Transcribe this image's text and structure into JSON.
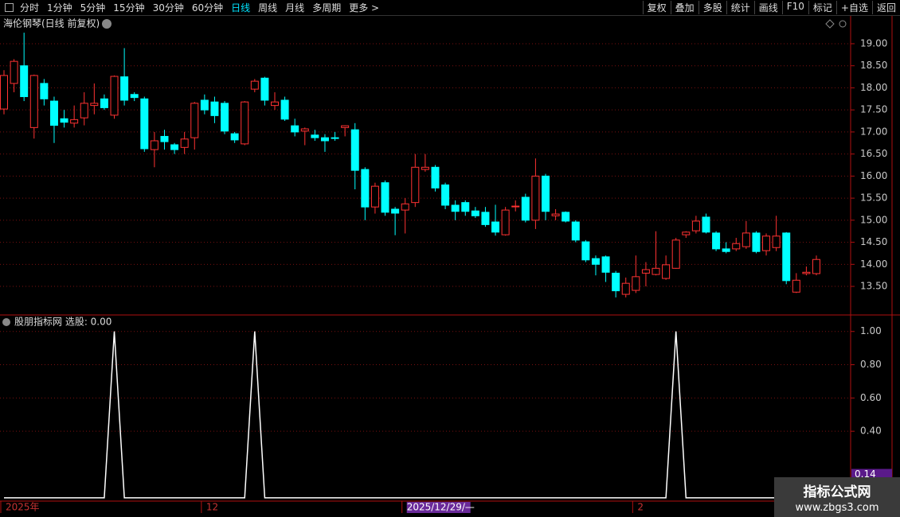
{
  "toolbar": {
    "periods": [
      "分时",
      "1分钟",
      "5分钟",
      "15分钟",
      "30分钟",
      "60分钟",
      "日线",
      "周线",
      "月线",
      "多周期",
      "更多 >"
    ],
    "active": 6,
    "buttons": [
      "复权",
      "叠加",
      "多股",
      "统计",
      "画线",
      "F10",
      "标记",
      "+自选",
      "返回"
    ]
  },
  "watermark": {
    "name": "指标公式网",
    "url": "www.zbgs3.com"
  },
  "chart_data": [
    {
      "type": "candlestick",
      "title": "海伦钢琴(日线 前复权)",
      "up_color": "#ff3232",
      "down_color": "#00ffff",
      "flat_color": "#ffffff",
      "grid": true,
      "categories": [
        "2025年",
        null,
        null,
        null,
        null,
        null,
        null,
        null,
        null,
        null,
        null,
        null,
        null,
        null,
        null,
        null,
        null,
        null,
        null,
        null,
        "12",
        null,
        null,
        null,
        null,
        null,
        null,
        null,
        null,
        null,
        null,
        null,
        null,
        null,
        null,
        null,
        null,
        null,
        null,
        null,
        "2025/12/29/—",
        null,
        null,
        null,
        null,
        null,
        null,
        null,
        null,
        null,
        null,
        null,
        null,
        null,
        null,
        null,
        null,
        null,
        null,
        null,
        null,
        null,
        null,
        "2",
        null,
        null,
        null,
        null,
        null,
        null,
        null,
        null,
        null,
        null,
        null,
        null,
        null,
        null,
        null,
        null,
        null,
        null
      ],
      "cursor_index": 40,
      "open": [
        17.52,
        18.1,
        18.5,
        17.1,
        18.1,
        17.7,
        17.3,
        17.2,
        17.32,
        17.6,
        17.75,
        17.38,
        18.25,
        17.85,
        17.75,
        16.6,
        16.9,
        16.71,
        16.65,
        16.87,
        17.72,
        17.68,
        17.65,
        16.96,
        16.73,
        17.97,
        18.22,
        17.6,
        17.72,
        17.14,
        17.02,
        16.93,
        16.87,
        16.87,
        17.1,
        17.05,
        16.15,
        15.3,
        15.85,
        15.25,
        15.23,
        15.4,
        16.15,
        16.2,
        15.8,
        15.34,
        15.4,
        15.21,
        15.18,
        14.96,
        14.67,
        15.31,
        15.52,
        15.0,
        16.0,
        15.1,
        15.18,
        14.96,
        14.51,
        14.13,
        14.17,
        13.8,
        13.32,
        13.41,
        13.8,
        13.77,
        13.68,
        13.91,
        14.67,
        14.76,
        15.07,
        14.71,
        14.35,
        14.35,
        14.4,
        14.71,
        14.31,
        14.38,
        14.71,
        13.37,
        13.79,
        13.79
      ],
      "high": [
        18.4,
        18.65,
        19.25,
        18.3,
        18.2,
        17.8,
        17.5,
        17.6,
        17.9,
        18.1,
        17.85,
        18.28,
        18.9,
        17.9,
        17.8,
        17.0,
        17.05,
        16.75,
        17.0,
        17.68,
        17.85,
        17.8,
        17.7,
        17.0,
        17.7,
        18.2,
        18.25,
        17.9,
        17.8,
        17.3,
        17.1,
        17.05,
        16.95,
        17.0,
        17.15,
        17.2,
        16.2,
        15.85,
        15.9,
        15.3,
        15.5,
        16.5,
        16.5,
        16.25,
        15.85,
        15.45,
        15.45,
        15.3,
        15.3,
        15.35,
        15.3,
        15.45,
        15.6,
        16.4,
        16.05,
        15.25,
        15.2,
        15.0,
        14.55,
        14.2,
        14.2,
        13.85,
        13.7,
        14.2,
        14.05,
        14.75,
        14.2,
        14.6,
        14.75,
        15.1,
        15.15,
        14.75,
        14.5,
        14.6,
        14.98,
        14.75,
        14.7,
        15.1,
        14.73,
        13.8,
        13.95,
        14.2
      ],
      "low": [
        17.4,
        17.9,
        17.7,
        16.85,
        17.6,
        16.75,
        17.1,
        17.1,
        17.15,
        17.4,
        17.5,
        17.3,
        17.6,
        17.7,
        16.55,
        16.2,
        16.6,
        16.5,
        16.5,
        16.6,
        17.4,
        17.2,
        16.95,
        16.75,
        16.7,
        17.9,
        17.6,
        17.5,
        17.25,
        16.9,
        16.7,
        16.8,
        16.55,
        16.8,
        16.9,
        15.7,
        15.0,
        15.15,
        15.1,
        14.66,
        14.7,
        15.3,
        16.1,
        15.65,
        15.25,
        15.0,
        15.1,
        15.05,
        14.85,
        14.65,
        14.65,
        15.2,
        14.95,
        14.8,
        15.0,
        15.0,
        14.95,
        14.5,
        14.05,
        13.75,
        13.6,
        13.25,
        13.25,
        13.35,
        13.5,
        13.75,
        13.65,
        13.9,
        14.6,
        14.7,
        14.7,
        14.3,
        14.25,
        14.3,
        14.35,
        14.25,
        14.2,
        14.3,
        13.55,
        13.35,
        13.75,
        13.75
      ],
      "close": [
        18.28,
        18.6,
        17.8,
        18.28,
        17.75,
        17.15,
        17.22,
        17.28,
        17.65,
        17.65,
        17.55,
        18.26,
        17.72,
        17.78,
        16.62,
        16.8,
        16.78,
        16.6,
        16.84,
        17.65,
        17.5,
        17.37,
        17.02,
        16.82,
        17.68,
        18.15,
        17.72,
        17.68,
        17.29,
        17.0,
        17.07,
        16.87,
        16.8,
        16.86,
        17.14,
        16.13,
        15.3,
        15.77,
        15.18,
        15.16,
        15.37,
        16.2,
        16.2,
        15.73,
        15.34,
        15.2,
        15.2,
        15.1,
        14.9,
        14.73,
        15.23,
        15.32,
        15.0,
        16.0,
        15.2,
        15.14,
        14.98,
        14.55,
        14.1,
        14.0,
        13.82,
        13.4,
        13.57,
        13.72,
        13.88,
        13.91,
        13.99,
        14.55,
        14.73,
        14.98,
        14.73,
        14.35,
        14.29,
        14.47,
        14.71,
        14.29,
        14.64,
        14.64,
        13.63,
        13.64,
        13.82,
        14.11
      ],
      "ylim": [
        12.87,
        19.45
      ],
      "yticks": [
        {
          "value": 13.5,
          "label": "13.50"
        },
        {
          "value": 14,
          "label": "14.00"
        },
        {
          "value": 14.5,
          "label": "14.50"
        },
        {
          "value": 15,
          "label": "15.00"
        },
        {
          "value": 15.5,
          "label": "15.50"
        },
        {
          "value": 16,
          "label": "16.00"
        },
        {
          "value": 16.5,
          "label": "16.50"
        },
        {
          "value": 17,
          "label": "17.00"
        },
        {
          "value": 17.5,
          "label": "17.50"
        },
        {
          "value": 18,
          "label": "18.00"
        },
        {
          "value": 18.5,
          "label": "18.50"
        },
        {
          "value": 19,
          "label": "19.00"
        }
      ]
    },
    {
      "type": "line",
      "title": "股朋指标网 选股: 0.00",
      "color": "#ffffff",
      "grid": true,
      "values": [
        0,
        0,
        0,
        0,
        0,
        0,
        0,
        0,
        0,
        0,
        0,
        1,
        0,
        0,
        0,
        0,
        0,
        0,
        0,
        0,
        0,
        0,
        0,
        0,
        0,
        1,
        0,
        0,
        0,
        0,
        0,
        0,
        0,
        0,
        0,
        0,
        0,
        0,
        0,
        0,
        0,
        0,
        0,
        0,
        0,
        0,
        0,
        0,
        0,
        0,
        0,
        0,
        0,
        0,
        0,
        0,
        0,
        0,
        0,
        0,
        0,
        0,
        0,
        0,
        0,
        0,
        0,
        1,
        0,
        0,
        0,
        0,
        0,
        0,
        0,
        0,
        0,
        0,
        0,
        0,
        0,
        0
      ],
      "ylim": [
        -0.02,
        1.08
      ],
      "yticks": [
        {
          "value": 0.4,
          "label": "0.40"
        },
        {
          "value": 0.6,
          "label": "0.60"
        },
        {
          "value": 0.8,
          "label": "0.80"
        },
        {
          "value": 1,
          "label": "1.00"
        }
      ],
      "cursor_value": 0.14
    }
  ]
}
